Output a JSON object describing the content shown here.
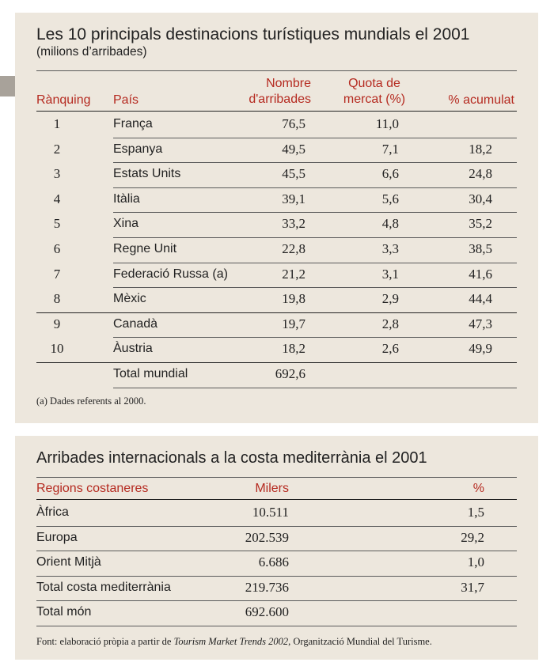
{
  "table1": {
    "title": "Les 10 principals destinacions turístiques mundials el 2001",
    "subtitle": "(milions d’arribades)",
    "headers": {
      "rank": "Rànquing",
      "country": "País",
      "arrivals_l1": "Nombre",
      "arrivals_l2": "d'arribades",
      "share_l1": "Quota de",
      "share_l2": "mercat (%)",
      "cumulative": "% acumulat"
    },
    "rows": [
      {
        "rank": "1",
        "country": "França",
        "arrivals": "76,5",
        "share": "11,0",
        "cumulative": ""
      },
      {
        "rank": "2",
        "country": "Espanya",
        "arrivals": "49,5",
        "share": "7,1",
        "cumulative": "18,2"
      },
      {
        "rank": "3",
        "country": "Estats Units",
        "arrivals": "45,5",
        "share": "6,6",
        "cumulative": "24,8"
      },
      {
        "rank": "4",
        "country": "Itàlia",
        "arrivals": "39,1",
        "share": "5,6",
        "cumulative": "30,4"
      },
      {
        "rank": "5",
        "country": "Xina",
        "arrivals": "33,2",
        "share": "4,8",
        "cumulative": "35,2"
      },
      {
        "rank": "6",
        "country": "Regne Unit",
        "arrivals": "22,8",
        "share": "3,3",
        "cumulative": "38,5"
      },
      {
        "rank": "7",
        "country": "Federació Russa (a)",
        "arrivals": "21,2",
        "share": "3,1",
        "cumulative": "41,6"
      },
      {
        "rank": "8",
        "country": "Mèxic",
        "arrivals": "19,8",
        "share": "2,9",
        "cumulative": "44,4"
      },
      {
        "rank": "9",
        "country": "Canadà",
        "arrivals": "19,7",
        "share": "2,8",
        "cumulative": "47,3"
      },
      {
        "rank": "10",
        "country": "Àustria",
        "arrivals": "18,2",
        "share": "2,6",
        "cumulative": "49,9"
      },
      {
        "rank": "",
        "country": "Total mundial",
        "arrivals": "692,6",
        "share": "",
        "cumulative": ""
      }
    ],
    "footnote": "(a) Dades referents al 2000."
  },
  "table2": {
    "title": "Arribades internacionals a la costa mediterrània el 2001",
    "headers": {
      "region": "Regions costaneres",
      "thousands": "Milers",
      "percent": "%"
    },
    "rows": [
      {
        "region": "Àfrica",
        "thousands": "10.511",
        "percent": "1,5"
      },
      {
        "region": "Europa",
        "thousands": "202.539",
        "percent": "29,2"
      },
      {
        "region": "Orient Mitjà",
        "thousands": "6.686",
        "percent": "1,0"
      },
      {
        "region": "Total costa mediterrània",
        "thousands": "219.736",
        "percent": "31,7"
      },
      {
        "region": "Total món",
        "thousands": "692.600",
        "percent": ""
      }
    ],
    "source_prefix": "Font: elaboració pròpia a partir de ",
    "source_title": "Tourism Market Trends 2002",
    "source_suffix": ", Organització Mundial del Turisme."
  },
  "colors": {
    "panel_bg": "#ede7dd",
    "header_red": "#b52a20",
    "text": "#222222"
  }
}
